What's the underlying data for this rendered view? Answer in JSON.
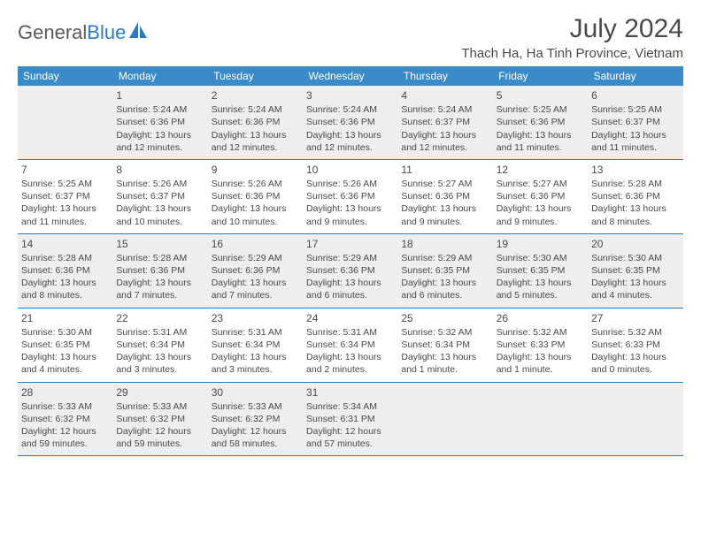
{
  "logo": {
    "text1": "General",
    "text2": "Blue"
  },
  "title": "July 2024",
  "location": "Thach Ha, Ha Tinh Province, Vietnam",
  "header_bg": "#3b8bc9",
  "header_fg": "#ffffff",
  "row_divider": "#2b7bbf",
  "alt_row_bg": "#eeeeee",
  "text_color": "#4a4a4a",
  "day_headers": [
    "Sunday",
    "Monday",
    "Tuesday",
    "Wednesday",
    "Thursday",
    "Friday",
    "Saturday"
  ],
  "weeks": [
    [
      null,
      {
        "n": "1",
        "sr": "5:24 AM",
        "ss": "6:36 PM",
        "dl": "13 hours and 12 minutes."
      },
      {
        "n": "2",
        "sr": "5:24 AM",
        "ss": "6:36 PM",
        "dl": "13 hours and 12 minutes."
      },
      {
        "n": "3",
        "sr": "5:24 AM",
        "ss": "6:36 PM",
        "dl": "13 hours and 12 minutes."
      },
      {
        "n": "4",
        "sr": "5:24 AM",
        "ss": "6:37 PM",
        "dl": "13 hours and 12 minutes."
      },
      {
        "n": "5",
        "sr": "5:25 AM",
        "ss": "6:36 PM",
        "dl": "13 hours and 11 minutes."
      },
      {
        "n": "6",
        "sr": "5:25 AM",
        "ss": "6:37 PM",
        "dl": "13 hours and 11 minutes."
      }
    ],
    [
      {
        "n": "7",
        "sr": "5:25 AM",
        "ss": "6:37 PM",
        "dl": "13 hours and 11 minutes."
      },
      {
        "n": "8",
        "sr": "5:26 AM",
        "ss": "6:37 PM",
        "dl": "13 hours and 10 minutes."
      },
      {
        "n": "9",
        "sr": "5:26 AM",
        "ss": "6:36 PM",
        "dl": "13 hours and 10 minutes."
      },
      {
        "n": "10",
        "sr": "5:26 AM",
        "ss": "6:36 PM",
        "dl": "13 hours and 9 minutes."
      },
      {
        "n": "11",
        "sr": "5:27 AM",
        "ss": "6:36 PM",
        "dl": "13 hours and 9 minutes."
      },
      {
        "n": "12",
        "sr": "5:27 AM",
        "ss": "6:36 PM",
        "dl": "13 hours and 9 minutes."
      },
      {
        "n": "13",
        "sr": "5:28 AM",
        "ss": "6:36 PM",
        "dl": "13 hours and 8 minutes."
      }
    ],
    [
      {
        "n": "14",
        "sr": "5:28 AM",
        "ss": "6:36 PM",
        "dl": "13 hours and 8 minutes."
      },
      {
        "n": "15",
        "sr": "5:28 AM",
        "ss": "6:36 PM",
        "dl": "13 hours and 7 minutes."
      },
      {
        "n": "16",
        "sr": "5:29 AM",
        "ss": "6:36 PM",
        "dl": "13 hours and 7 minutes."
      },
      {
        "n": "17",
        "sr": "5:29 AM",
        "ss": "6:36 PM",
        "dl": "13 hours and 6 minutes."
      },
      {
        "n": "18",
        "sr": "5:29 AM",
        "ss": "6:35 PM",
        "dl": "13 hours and 6 minutes."
      },
      {
        "n": "19",
        "sr": "5:30 AM",
        "ss": "6:35 PM",
        "dl": "13 hours and 5 minutes."
      },
      {
        "n": "20",
        "sr": "5:30 AM",
        "ss": "6:35 PM",
        "dl": "13 hours and 4 minutes."
      }
    ],
    [
      {
        "n": "21",
        "sr": "5:30 AM",
        "ss": "6:35 PM",
        "dl": "13 hours and 4 minutes."
      },
      {
        "n": "22",
        "sr": "5:31 AM",
        "ss": "6:34 PM",
        "dl": "13 hours and 3 minutes."
      },
      {
        "n": "23",
        "sr": "5:31 AM",
        "ss": "6:34 PM",
        "dl": "13 hours and 3 minutes."
      },
      {
        "n": "24",
        "sr": "5:31 AM",
        "ss": "6:34 PM",
        "dl": "13 hours and 2 minutes."
      },
      {
        "n": "25",
        "sr": "5:32 AM",
        "ss": "6:34 PM",
        "dl": "13 hours and 1 minute."
      },
      {
        "n": "26",
        "sr": "5:32 AM",
        "ss": "6:33 PM",
        "dl": "13 hours and 1 minute."
      },
      {
        "n": "27",
        "sr": "5:32 AM",
        "ss": "6:33 PM",
        "dl": "13 hours and 0 minutes."
      }
    ],
    [
      {
        "n": "28",
        "sr": "5:33 AM",
        "ss": "6:32 PM",
        "dl": "12 hours and 59 minutes."
      },
      {
        "n": "29",
        "sr": "5:33 AM",
        "ss": "6:32 PM",
        "dl": "12 hours and 59 minutes."
      },
      {
        "n": "30",
        "sr": "5:33 AM",
        "ss": "6:32 PM",
        "dl": "12 hours and 58 minutes."
      },
      {
        "n": "31",
        "sr": "5:34 AM",
        "ss": "6:31 PM",
        "dl": "12 hours and 57 minutes."
      },
      null,
      null,
      null
    ]
  ],
  "labels": {
    "sunrise": "Sunrise:",
    "sunset": "Sunset:",
    "daylight": "Daylight:"
  }
}
